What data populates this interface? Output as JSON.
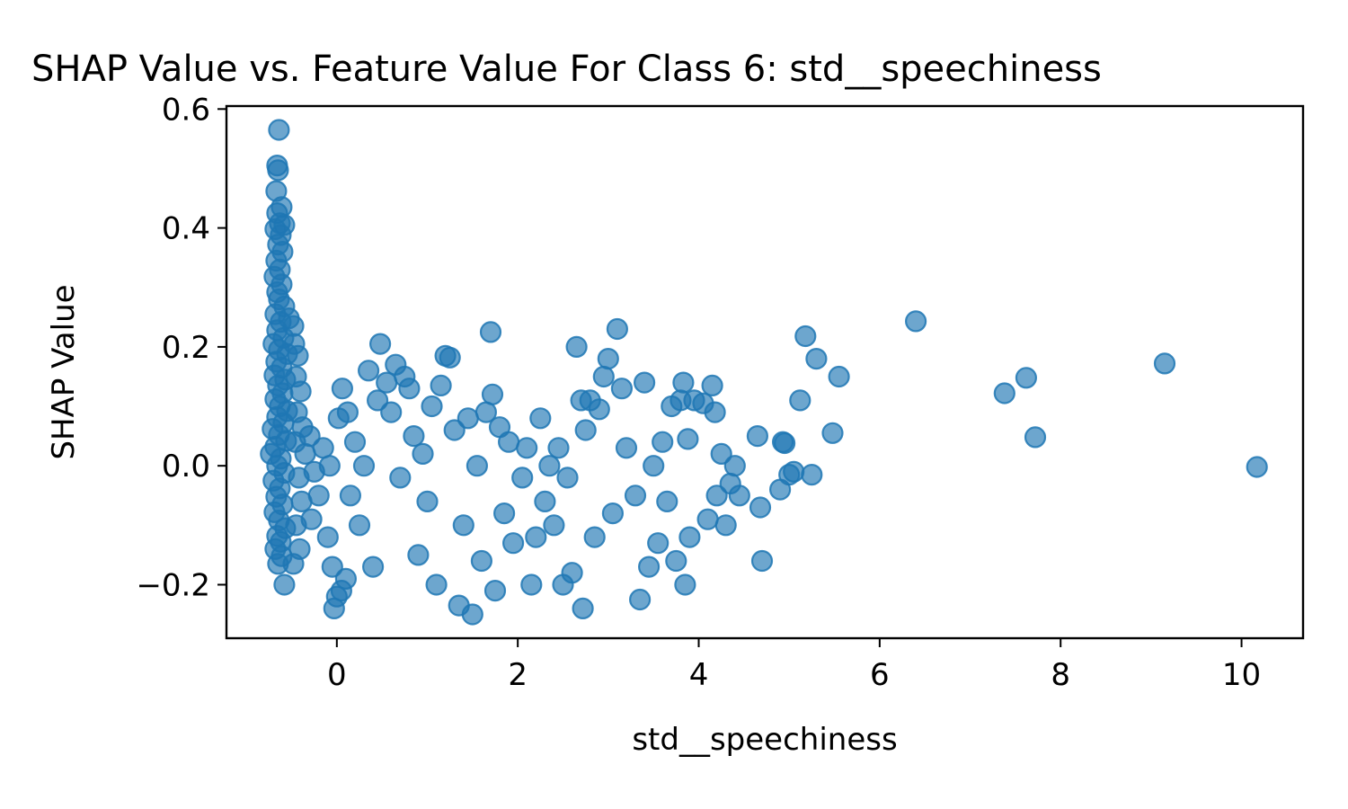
{
  "chart_data": {
    "type": "scatter",
    "title": "SHAP Value vs. Feature Value For Class 6: std__speechiness",
    "xlabel": "std__speechiness",
    "ylabel": "SHAP Value",
    "xlim": [
      -1.22,
      10.68
    ],
    "ylim": [
      -0.29,
      0.605
    ],
    "xticks": [
      0,
      2,
      4,
      6,
      8,
      10
    ],
    "xtick_labels": [
      "0",
      "2",
      "4",
      "6",
      "8",
      "10"
    ],
    "yticks": [
      -0.2,
      0.0,
      0.2,
      0.4,
      0.6
    ],
    "ytick_labels": [
      "−0.2",
      "0.0",
      "0.2",
      "0.4",
      "0.6"
    ],
    "grid": false,
    "marker_color": "#1f77b4",
    "marker_alpha": 0.65,
    "points": [
      [
        -0.64,
        0.565
      ],
      [
        -0.66,
        0.505
      ],
      [
        -0.65,
        0.497
      ],
      [
        -0.67,
        0.462
      ],
      [
        -0.61,
        0.435
      ],
      [
        -0.66,
        0.425
      ],
      [
        -0.63,
        0.408
      ],
      [
        -0.58,
        0.405
      ],
      [
        -0.68,
        0.398
      ],
      [
        -0.62,
        0.388
      ],
      [
        -0.65,
        0.372
      ],
      [
        -0.6,
        0.36
      ],
      [
        -0.67,
        0.345
      ],
      [
        -0.63,
        0.33
      ],
      [
        -0.69,
        0.318
      ],
      [
        -0.61,
        0.305
      ],
      [
        -0.66,
        0.292
      ],
      [
        -0.64,
        0.28
      ],
      [
        -0.58,
        0.268
      ],
      [
        -0.68,
        0.255
      ],
      [
        -0.62,
        0.242
      ],
      [
        -0.53,
        0.248
      ],
      [
        -0.48,
        0.235
      ],
      [
        -0.66,
        0.228
      ],
      [
        -0.59,
        0.215
      ],
      [
        -0.7,
        0.205
      ],
      [
        -0.64,
        0.195
      ],
      [
        -0.55,
        0.188
      ],
      [
        -0.67,
        0.175
      ],
      [
        -0.61,
        0.165
      ],
      [
        -0.69,
        0.152
      ],
      [
        -0.57,
        0.145
      ],
      [
        -0.65,
        0.135
      ],
      [
        -0.6,
        0.122
      ],
      [
        -0.68,
        0.112
      ],
      [
        -0.63,
        0.1
      ],
      [
        -0.55,
        0.092
      ],
      [
        -0.66,
        0.082
      ],
      [
        -0.59,
        0.072
      ],
      [
        -0.71,
        0.062
      ],
      [
        -0.64,
        0.052
      ],
      [
        -0.56,
        0.042
      ],
      [
        -0.68,
        0.032
      ],
      [
        -0.73,
        0.02
      ],
      [
        -0.62,
        0.012
      ],
      [
        -0.66,
        0.0
      ],
      [
        -0.58,
        -0.012
      ],
      [
        -0.7,
        -0.025
      ],
      [
        -0.63,
        -0.038
      ],
      [
        -0.67,
        -0.052
      ],
      [
        -0.6,
        -0.065
      ],
      [
        -0.69,
        -0.078
      ],
      [
        -0.64,
        -0.092
      ],
      [
        -0.57,
        -0.105
      ],
      [
        -0.66,
        -0.118
      ],
      [
        -0.62,
        -0.128
      ],
      [
        -0.68,
        -0.14
      ],
      [
        -0.61,
        -0.152
      ],
      [
        -0.65,
        -0.165
      ],
      [
        -0.58,
        -0.2
      ],
      [
        -0.47,
        0.205
      ],
      [
        -0.43,
        0.185
      ],
      [
        -0.45,
        0.15
      ],
      [
        -0.4,
        0.125
      ],
      [
        -0.44,
        0.09
      ],
      [
        -0.38,
        0.065
      ],
      [
        -0.46,
        0.04
      ],
      [
        -0.35,
        0.02
      ],
      [
        -0.42,
        -0.02
      ],
      [
        -0.39,
        -0.06
      ],
      [
        -0.45,
        -0.1
      ],
      [
        -0.41,
        -0.14
      ],
      [
        -0.48,
        -0.165
      ],
      [
        -0.3,
        0.05
      ],
      [
        -0.25,
        -0.01
      ],
      [
        -0.2,
        -0.05
      ],
      [
        -0.28,
        -0.09
      ],
      [
        -0.15,
        0.03
      ],
      [
        -0.1,
        -0.12
      ],
      [
        -0.05,
        -0.17
      ],
      [
        0.0,
        -0.22
      ],
      [
        -0.03,
        -0.24
      ],
      [
        0.05,
        -0.21
      ],
      [
        0.1,
        -0.19
      ],
      [
        0.02,
        0.08
      ],
      [
        0.06,
        0.13
      ],
      [
        0.12,
        0.09
      ],
      [
        -0.08,
        0.0
      ],
      [
        0.15,
        -0.05
      ],
      [
        0.2,
        0.04
      ],
      [
        0.25,
        -0.1
      ],
      [
        0.3,
        0.0
      ],
      [
        0.35,
        0.16
      ],
      [
        0.4,
        -0.17
      ],
      [
        0.45,
        0.11
      ],
      [
        0.48,
        0.205
      ],
      [
        0.55,
        0.14
      ],
      [
        0.6,
        0.09
      ],
      [
        0.65,
        0.17
      ],
      [
        0.7,
        -0.02
      ],
      [
        0.75,
        0.15
      ],
      [
        0.8,
        0.13
      ],
      [
        0.85,
        0.05
      ],
      [
        0.9,
        -0.15
      ],
      [
        0.95,
        0.02
      ],
      [
        1.0,
        -0.06
      ],
      [
        1.05,
        0.1
      ],
      [
        1.1,
        -0.2
      ],
      [
        1.15,
        0.135
      ],
      [
        1.2,
        0.185
      ],
      [
        1.25,
        0.182
      ],
      [
        1.3,
        0.06
      ],
      [
        1.35,
        -0.235
      ],
      [
        1.4,
        -0.1
      ],
      [
        1.45,
        0.08
      ],
      [
        1.5,
        -0.25
      ],
      [
        1.55,
        0.0
      ],
      [
        1.6,
        -0.16
      ],
      [
        1.65,
        0.09
      ],
      [
        1.7,
        0.225
      ],
      [
        1.72,
        0.12
      ],
      [
        1.75,
        -0.21
      ],
      [
        1.8,
        0.065
      ],
      [
        1.85,
        -0.08
      ],
      [
        1.9,
        0.04
      ],
      [
        1.95,
        -0.13
      ],
      [
        2.05,
        -0.02
      ],
      [
        2.1,
        0.03
      ],
      [
        2.15,
        -0.2
      ],
      [
        2.2,
        -0.12
      ],
      [
        2.25,
        0.08
      ],
      [
        2.3,
        -0.06
      ],
      [
        2.35,
        0.0
      ],
      [
        2.4,
        -0.1
      ],
      [
        2.45,
        0.03
      ],
      [
        2.5,
        -0.2
      ],
      [
        2.55,
        -0.02
      ],
      [
        2.6,
        -0.18
      ],
      [
        2.65,
        0.2
      ],
      [
        2.7,
        0.11
      ],
      [
        2.72,
        -0.24
      ],
      [
        2.75,
        0.06
      ],
      [
        2.8,
        0.11
      ],
      [
        2.85,
        -0.12
      ],
      [
        2.9,
        0.095
      ],
      [
        2.95,
        0.15
      ],
      [
        3.0,
        0.18
      ],
      [
        3.05,
        -0.08
      ],
      [
        3.1,
        0.23
      ],
      [
        3.15,
        0.13
      ],
      [
        3.2,
        0.03
      ],
      [
        3.3,
        -0.05
      ],
      [
        3.35,
        -0.225
      ],
      [
        3.4,
        0.14
      ],
      [
        3.45,
        -0.17
      ],
      [
        3.5,
        0.0
      ],
      [
        3.55,
        -0.13
      ],
      [
        3.6,
        0.04
      ],
      [
        3.65,
        -0.06
      ],
      [
        3.7,
        0.1
      ],
      [
        3.75,
        -0.16
      ],
      [
        3.8,
        0.11
      ],
      [
        3.83,
        0.14
      ],
      [
        3.85,
        -0.2
      ],
      [
        3.88,
        0.045
      ],
      [
        3.9,
        -0.12
      ],
      [
        3.95,
        0.11
      ],
      [
        4.05,
        0.105
      ],
      [
        4.1,
        -0.09
      ],
      [
        4.15,
        0.135
      ],
      [
        4.18,
        0.09
      ],
      [
        4.2,
        -0.05
      ],
      [
        4.25,
        0.02
      ],
      [
        4.3,
        -0.1
      ],
      [
        4.35,
        -0.03
      ],
      [
        4.4,
        0.0
      ],
      [
        4.45,
        -0.05
      ],
      [
        4.65,
        0.05
      ],
      [
        4.68,
        -0.07
      ],
      [
        4.7,
        -0.16
      ],
      [
        4.9,
        -0.04
      ],
      [
        4.93,
        0.04
      ],
      [
        4.95,
        0.038
      ],
      [
        5.0,
        -0.015
      ],
      [
        5.05,
        -0.01
      ],
      [
        5.12,
        0.11
      ],
      [
        5.18,
        0.218
      ],
      [
        5.25,
        -0.015
      ],
      [
        5.3,
        0.18
      ],
      [
        5.48,
        0.055
      ],
      [
        5.55,
        0.15
      ],
      [
        6.4,
        0.243
      ],
      [
        7.38,
        0.122
      ],
      [
        7.62,
        0.148
      ],
      [
        7.72,
        0.048
      ],
      [
        9.15,
        0.172
      ],
      [
        10.17,
        -0.002
      ]
    ]
  }
}
